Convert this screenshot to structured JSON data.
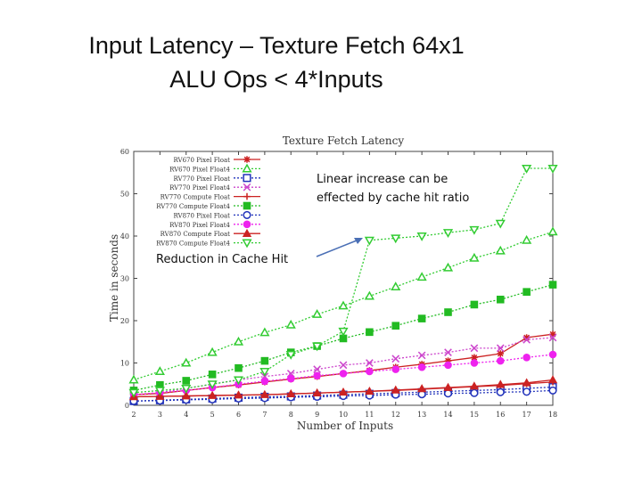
{
  "slide": {
    "title_line1": "Input Latency – Texture Fetch 64x1",
    "title_line2": "ALU Ops < 4*Inputs"
  },
  "annotations": {
    "linear_line1": "Linear increase can be",
    "linear_line2": "effected by cache hit ratio",
    "cache_hit": "Reduction in Cache Hit"
  },
  "chart_data": {
    "type": "line",
    "title": "Texture Fetch Latency",
    "xlabel": "Number of Inputs",
    "ylabel": "Time in seconds",
    "xlim": [
      2,
      18
    ],
    "ylim": [
      0,
      60
    ],
    "x_ticks": [
      2,
      3,
      4,
      5,
      6,
      7,
      8,
      9,
      10,
      11,
      12,
      13,
      14,
      15,
      16,
      17,
      18
    ],
    "y_ticks": [
      0,
      10,
      20,
      30,
      40,
      50,
      60
    ],
    "x": [
      2,
      3,
      4,
      5,
      6,
      7,
      8,
      9,
      10,
      11,
      12,
      13,
      14,
      15,
      16,
      17,
      18
    ],
    "legend_position": "top-left",
    "series": [
      {
        "name": "RV670 Pixel Float",
        "color": "#cc2222",
        "marker": "star",
        "dash": "solid",
        "values": [
          2.5,
          2.8,
          3.5,
          4.2,
          4.8,
          5.5,
          6.2,
          6.8,
          7.5,
          8.2,
          9.0,
          9.7,
          10.5,
          11.3,
          12.2,
          16.0,
          16.8
        ]
      },
      {
        "name": "RV670 Pixel Float4",
        "color": "#33cc33",
        "marker": "triangle-up-open",
        "dash": "dotted",
        "values": [
          6.0,
          8.0,
          10.0,
          12.5,
          15.0,
          17.2,
          19.0,
          21.5,
          23.5,
          25.8,
          28.0,
          30.3,
          32.5,
          34.8,
          36.5,
          39.0,
          41.0
        ]
      },
      {
        "name": "RV770 Pixel Float",
        "color": "#2233bb",
        "marker": "square-open",
        "dash": "dotted",
        "values": [
          1.0,
          1.2,
          1.4,
          1.6,
          1.8,
          2.0,
          2.1,
          2.3,
          2.5,
          2.7,
          2.9,
          3.1,
          3.3,
          3.5,
          3.7,
          4.0,
          4.3
        ]
      },
      {
        "name": "RV770 Pixel Float4",
        "color": "#cc44cc",
        "marker": "x",
        "dash": "dotted",
        "values": [
          2.5,
          3.0,
          4.0,
          5.0,
          6.0,
          6.8,
          7.5,
          8.5,
          9.5,
          10.0,
          11.0,
          11.8,
          12.5,
          13.5,
          13.5,
          15.5,
          16.0
        ]
      },
      {
        "name": "RV770 Compute Float",
        "color": "#cc2222",
        "marker": "plus",
        "dash": "solid",
        "values": [
          2.0,
          2.1,
          2.2,
          2.3,
          2.4,
          2.5,
          2.7,
          2.9,
          3.1,
          3.3,
          3.5,
          3.8,
          4.1,
          4.4,
          4.7,
          5.1,
          5.5
        ]
      },
      {
        "name": "RV770 Compute Float4",
        "color": "#22bb22",
        "marker": "square-filled",
        "dash": "dotted",
        "values": [
          3.5,
          4.8,
          5.8,
          7.3,
          8.8,
          10.5,
          12.5,
          14.0,
          15.8,
          17.3,
          18.8,
          20.5,
          22.0,
          23.8,
          25.0,
          26.8,
          28.5
        ]
      },
      {
        "name": "RV870 Pixel Float",
        "color": "#2233bb",
        "marker": "circle-open",
        "dash": "dotted",
        "values": [
          1.0,
          1.1,
          1.3,
          1.4,
          1.6,
          1.7,
          1.9,
          2.0,
          2.2,
          2.3,
          2.5,
          2.6,
          2.8,
          2.9,
          3.1,
          3.2,
          3.5
        ]
      },
      {
        "name": "RV870 Pixel Float4",
        "color": "#ee22ee",
        "marker": "circle-filled",
        "dash": "dotted",
        "values": [
          2.5,
          3.0,
          3.5,
          4.2,
          5.0,
          5.7,
          6.3,
          7.0,
          7.5,
          8.0,
          8.5,
          9.0,
          9.5,
          10.0,
          10.5,
          11.3,
          12.0
        ]
      },
      {
        "name": "RV870 Compute Float",
        "color": "#cc2222",
        "marker": "triangle-up-filled",
        "dash": "solid",
        "values": [
          2.0,
          2.1,
          2.2,
          2.3,
          2.4,
          2.5,
          2.7,
          2.9,
          3.1,
          3.3,
          3.6,
          3.9,
          4.2,
          4.5,
          4.9,
          5.3,
          6.0
        ]
      },
      {
        "name": "RV870 Compute Float4",
        "color": "#33cc33",
        "marker": "triangle-down-open",
        "dash": "dotted",
        "values": [
          3.0,
          3.5,
          4.0,
          5.0,
          6.0,
          8.0,
          12.0,
          14.0,
          17.5,
          39.0,
          39.5,
          40.0,
          40.8,
          41.5,
          43.0,
          56.0,
          56.0
        ]
      }
    ]
  }
}
